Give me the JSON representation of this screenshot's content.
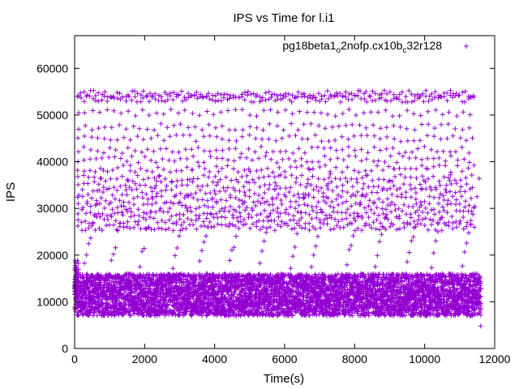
{
  "chart_data": {
    "type": "scatter",
    "title": "IPS vs Time for l.i1",
    "xlabel": "Time(s)",
    "ylabel": "IPS",
    "xlim": [
      0,
      12000
    ],
    "ylim": [
      0,
      67000
    ],
    "x_ticks": [
      0,
      2000,
      4000,
      6000,
      8000,
      10000,
      12000
    ],
    "y_ticks": [
      0,
      10000,
      20000,
      30000,
      40000,
      50000,
      60000
    ],
    "grid": false,
    "legend_position": "top-right",
    "series": [
      {
        "name_parts": [
          "pg18beta1",
          "o",
          "2nofp.cx10b",
          "c",
          "32r128"
        ],
        "marker": "+",
        "color": "#9400D3",
        "x_range": [
          0,
          11600
        ],
        "dense_band": [
          7000,
          16000
        ],
        "upper_band": [
          25000,
          56000
        ],
        "upper_levels": [
          26000,
          27500,
          29000,
          30500,
          32000,
          33500,
          35000,
          36500,
          38500,
          40500,
          42500,
          45000,
          47500,
          50500,
          53500,
          54500
        ],
        "startup_spike": 19500,
        "outlier": [
          11600,
          4800
        ]
      }
    ]
  }
}
